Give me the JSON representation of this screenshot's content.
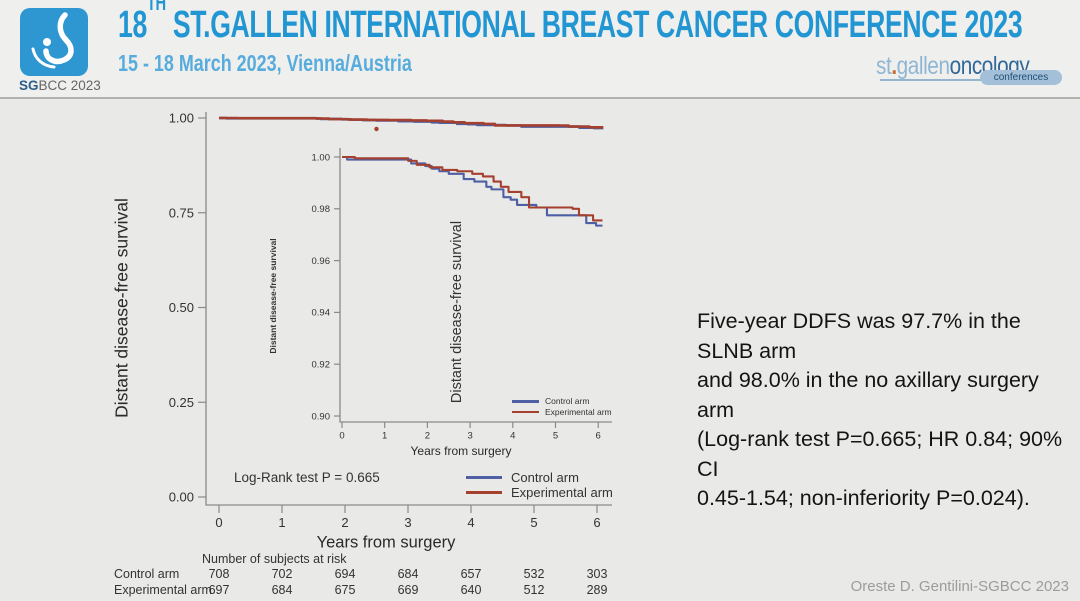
{
  "header": {
    "logo_caption_bold": "SG",
    "logo_caption_rest": "BCC 2023",
    "title_num": "18",
    "title_sup": "TH",
    "title_rest": " ST.GALLEN INTERNATIONAL BREAST CANCER CONFERENCE 2023",
    "subtitle": "15 - 18 March 2023, Vienna/Austria",
    "brand": {
      "part1": "st",
      "dot": ".",
      "part2": "gallen",
      "part3": "oncology",
      "badge": "conferences"
    }
  },
  "chart_data": {
    "type": "line",
    "title": "",
    "series": [
      {
        "name": "Control arm",
        "color": "#4e5fa3",
        "step_points": [
          [
            0,
            1.0
          ],
          [
            0.12,
            0.999
          ],
          [
            1.5,
            0.999
          ],
          [
            1.62,
            0.9975
          ],
          [
            1.95,
            0.9965
          ],
          [
            2.1,
            0.9955
          ],
          [
            2.28,
            0.9945
          ],
          [
            2.5,
            0.9935
          ],
          [
            2.85,
            0.9915
          ],
          [
            3.1,
            0.9905
          ],
          [
            3.38,
            0.9885
          ],
          [
            3.5,
            0.9875
          ],
          [
            3.78,
            0.9845
          ],
          [
            3.95,
            0.9835
          ],
          [
            4.1,
            0.9815
          ],
          [
            4.55,
            0.9805
          ],
          [
            4.8,
            0.9775
          ],
          [
            5.62,
            0.9775
          ],
          [
            5.72,
            0.9745
          ],
          [
            5.95,
            0.9735
          ],
          [
            6.1,
            0.9735
          ]
        ]
      },
      {
        "name": "Experimental arm",
        "color": "#a5402f",
        "step_points": [
          [
            0,
            1.0
          ],
          [
            0.3,
            0.9995
          ],
          [
            1.55,
            0.9985
          ],
          [
            1.75,
            0.997
          ],
          [
            2.05,
            0.996
          ],
          [
            2.35,
            0.995
          ],
          [
            2.7,
            0.9945
          ],
          [
            3.05,
            0.9935
          ],
          [
            3.3,
            0.9925
          ],
          [
            3.55,
            0.9905
          ],
          [
            3.72,
            0.9885
          ],
          [
            3.9,
            0.9865
          ],
          [
            4.2,
            0.9845
          ],
          [
            4.38,
            0.9805
          ],
          [
            5.4,
            0.98
          ],
          [
            5.55,
            0.9775
          ],
          [
            5.88,
            0.9755
          ],
          [
            6.1,
            0.9755
          ]
        ]
      }
    ],
    "stray_marker": {
      "x": 2.5,
      "y": 0.971,
      "color": "#a5402f"
    },
    "views": {
      "main": {
        "xlim": [
          0,
          6.3
        ],
        "ylim": [
          0.0,
          1.0
        ],
        "x_ticks": [
          "0",
          "1",
          "2",
          "3",
          "4",
          "5",
          "6"
        ],
        "y_ticks": [
          "1.00",
          "0.75",
          "0.50",
          "0.25",
          "0.00"
        ],
        "xlabel": "Years from surgery",
        "ylabel": "Distant disease-free survival",
        "annotation": "Log-Rank test P = 0.665",
        "grid": "off",
        "legend_position": "bottom-right"
      },
      "inset": {
        "xlim": [
          0,
          6.3
        ],
        "ylim": [
          0.9,
          1.0
        ],
        "x_ticks": [
          "0",
          "1",
          "2",
          "3",
          "4",
          "5",
          "6"
        ],
        "y_ticks": [
          "1.00",
          "0.98",
          "0.96",
          "0.94",
          "0.92",
          "0.90"
        ],
        "xlabel": "Years from surgery",
        "ylabel": "Distant disease-free survival",
        "ylabel_secondary": "Distant disease-free survival",
        "grid": "off",
        "legend_position": "bottom-right"
      }
    },
    "risk_table": {
      "title": "Number of subjects at risk",
      "columns": [
        "0",
        "1",
        "2",
        "3",
        "4",
        "5",
        "6"
      ],
      "rows": [
        {
          "label": "Control arm",
          "values": [
            "708",
            "702",
            "694",
            "684",
            "657",
            "532",
            "303"
          ]
        },
        {
          "label": "Experimental arm",
          "values": [
            "697",
            "684",
            "675",
            "669",
            "640",
            "512",
            "289"
          ]
        }
      ]
    }
  },
  "result_text": {
    "lines": [
      "Five-year DDFS was 97.7% in the SLNB arm",
      "and 98.0% in the no axillary surgery arm",
      "(Log-rank test P=0.665; HR 0.84; 90% CI",
      "0.45-1.54; non-inferiority P=0.024)."
    ]
  },
  "footer": {
    "credit": "Oreste D. Gentilini-SGBCC 2023"
  },
  "colors": {
    "title_blue": "#2196d3",
    "subtitle_blue": "#58acdd",
    "control_arm": "#4e5fa3",
    "experimental_arm": "#a5402f",
    "slide_background": "#e9e9e7"
  }
}
